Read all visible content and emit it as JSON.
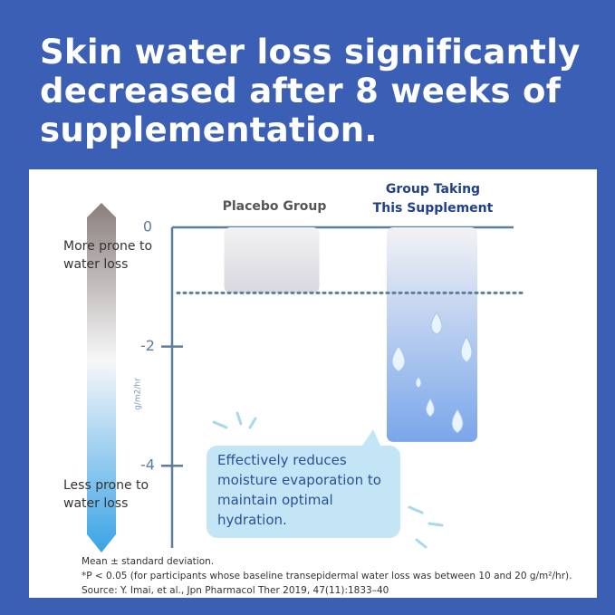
{
  "headline": "Skin water loss significantly decreased after 8 weeks of supplementation.",
  "chart_data": {
    "type": "bar",
    "categories": [
      "Placebo Group",
      "Group Taking This Supplement"
    ],
    "values": [
      -1.1,
      -3.6
    ],
    "colors": [
      "#d8d8dd",
      "#7aa6ea"
    ],
    "ylim": [
      -5,
      0
    ],
    "yticks": [
      0,
      -2,
      -4
    ],
    "y_axis_label": "g/m2/hr",
    "top_label": "More prone to water loss",
    "bottom_label": "Less prone to water loss",
    "callout": "Effectively reduces moisture evaporation to maintain optimal hydration.",
    "footnotes": [
      "Mean ± standard deviation.",
      "*P < 0.05 (for participants whose baseline transepidermal water loss was between 10 and 20 g/m²/hr).",
      "Source: Y. Imai, et al., Jpn Pharmacol Ther 2019, 47(11):1833–40"
    ]
  }
}
